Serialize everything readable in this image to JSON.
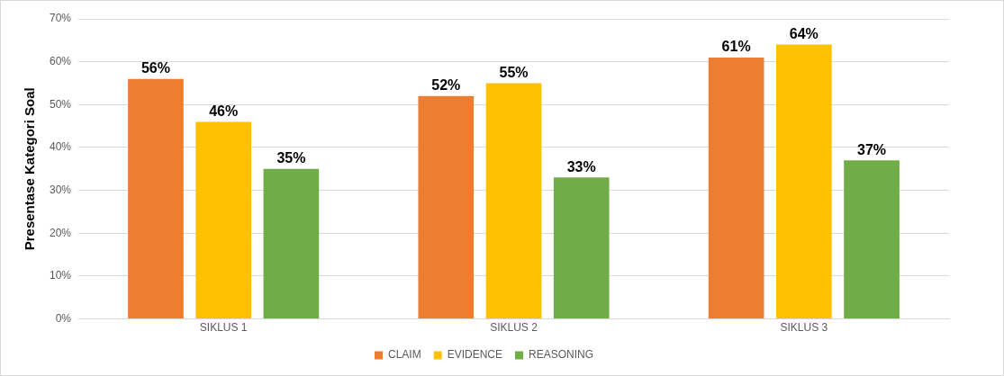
{
  "chart_data": {
    "type": "bar",
    "ylabel": "Presentase Kategori Soal",
    "categories": [
      "SIKLUS 1",
      "SIKLUS 2",
      "SIKLUS 3"
    ],
    "series": [
      {
        "name": "CLAIM",
        "color": "#ed7d31",
        "values": [
          56,
          52,
          61
        ],
        "value_labels": [
          "56%",
          "52%",
          "61%"
        ]
      },
      {
        "name": "EVIDENCE",
        "color": "#ffc000",
        "values": [
          46,
          55,
          64
        ],
        "value_labels": [
          "46%",
          "55%",
          "64%"
        ]
      },
      {
        "name": "REASONING",
        "color": "#70ad47",
        "values": [
          35,
          33,
          37
        ],
        "value_labels": [
          "35%",
          "33%",
          "37%"
        ]
      }
    ],
    "ylim": [
      0,
      70
    ],
    "yticks": [
      {
        "value": 0,
        "label": "0%"
      },
      {
        "value": 10,
        "label": "10%"
      },
      {
        "value": 20,
        "label": "20%"
      },
      {
        "value": 30,
        "label": "30%"
      },
      {
        "value": 40,
        "label": "40%"
      },
      {
        "value": 50,
        "label": "50%"
      },
      {
        "value": 60,
        "label": "60%"
      },
      {
        "value": 70,
        "label": "70%"
      }
    ],
    "grid": "y",
    "legend": "bottom"
  }
}
